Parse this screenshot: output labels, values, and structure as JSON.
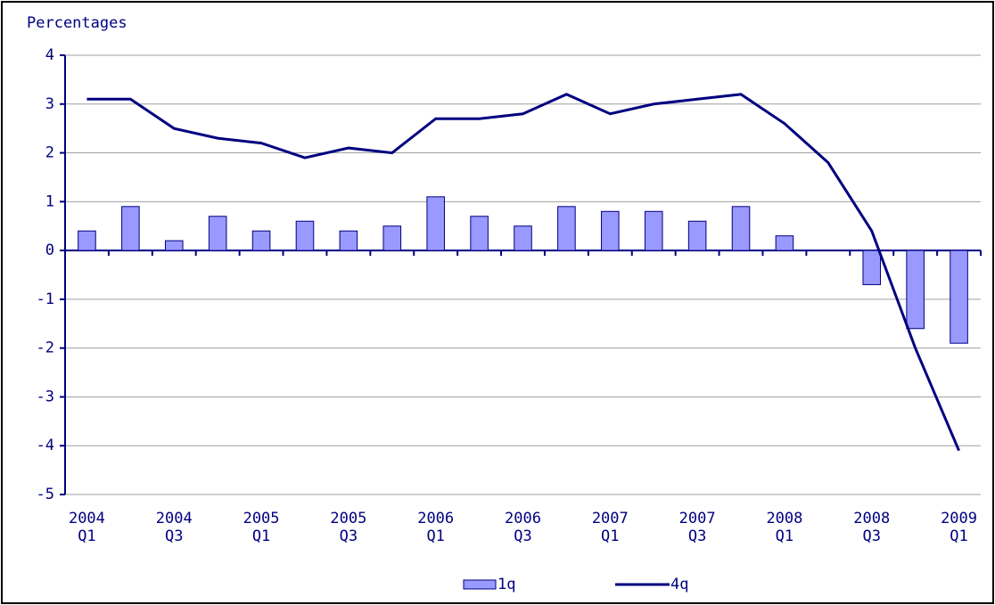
{
  "chart_data": {
    "type": "bar_line",
    "ylabel": "Percentages",
    "categories": [
      "2004 Q1",
      null,
      "2004 Q3",
      null,
      "2005 Q1",
      null,
      "2005 Q3",
      null,
      "2006 Q1",
      null,
      "2006 Q3",
      null,
      "2007 Q1",
      null,
      "2007 Q3",
      null,
      "2008 Q1",
      null,
      "2008 Q3",
      null,
      "2009 Q1"
    ],
    "series": [
      {
        "name": "1q",
        "type": "bar",
        "color": "#9999ff",
        "values": [
          0.4,
          0.9,
          0.2,
          0.7,
          0.4,
          0.6,
          0.4,
          0.5,
          1.1,
          0.7,
          0.5,
          0.9,
          0.8,
          0.8,
          0.6,
          0.9,
          0.3,
          0,
          -0.7,
          -1.6,
          -1.9
        ]
      },
      {
        "name": "4q",
        "type": "line",
        "color": "#000080",
        "values": [
          3.1,
          3.1,
          2.5,
          2.3,
          2.2,
          1.9,
          2.1,
          2.0,
          2.7,
          2.7,
          2.8,
          3.2,
          2.8,
          3.0,
          3.1,
          3.2,
          2.6,
          1.8,
          0.4,
          -2.0,
          -4.1
        ]
      }
    ],
    "ylim": [
      -5,
      4
    ],
    "yticks": [
      -5,
      -4,
      -3,
      -2,
      -1,
      0,
      1,
      2,
      3,
      4
    ],
    "grid": true,
    "legend": "bottom"
  }
}
